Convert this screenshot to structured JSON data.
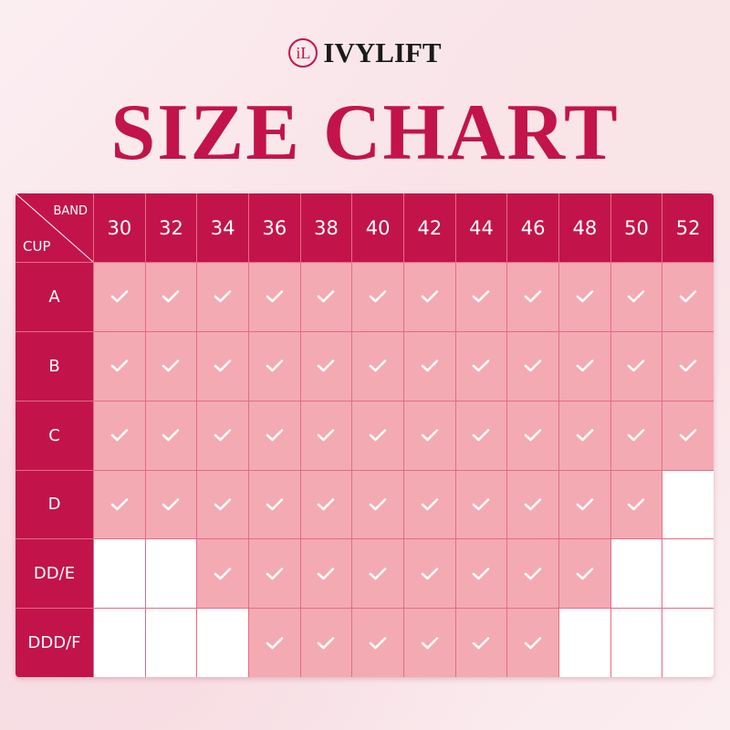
{
  "brand": {
    "logo_mark": "iL",
    "name": "IVYLIFT"
  },
  "title": "SIZE CHART",
  "table": {
    "corner_band": "BAND",
    "corner_cup": "CUP",
    "bands": [
      "30",
      "32",
      "34",
      "36",
      "38",
      "40",
      "42",
      "44",
      "46",
      "48",
      "50",
      "52"
    ],
    "rows": [
      {
        "cup": "A",
        "available": [
          1,
          1,
          1,
          1,
          1,
          1,
          1,
          1,
          1,
          1,
          1,
          1
        ]
      },
      {
        "cup": "B",
        "available": [
          1,
          1,
          1,
          1,
          1,
          1,
          1,
          1,
          1,
          1,
          1,
          1
        ]
      },
      {
        "cup": "C",
        "available": [
          1,
          1,
          1,
          1,
          1,
          1,
          1,
          1,
          1,
          1,
          1,
          1
        ]
      },
      {
        "cup": "D",
        "available": [
          1,
          1,
          1,
          1,
          1,
          1,
          1,
          1,
          1,
          1,
          1,
          0
        ]
      },
      {
        "cup": "DD/E",
        "available": [
          0,
          0,
          1,
          1,
          1,
          1,
          1,
          1,
          1,
          1,
          0,
          0
        ]
      },
      {
        "cup": "DDD/F",
        "available": [
          0,
          0,
          0,
          1,
          1,
          1,
          1,
          1,
          1,
          0,
          0,
          0
        ]
      }
    ],
    "check_icon": "checkmark-icon",
    "colors": {
      "header": "#c2144a",
      "available": "#f4aab3",
      "unavailable": "#ffffff"
    }
  }
}
